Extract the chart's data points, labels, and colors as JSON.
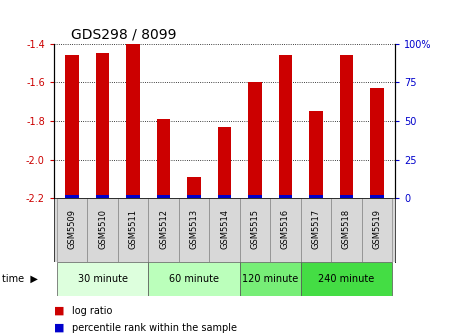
{
  "title": "GDS298 / 8099",
  "samples": [
    "GSM5509",
    "GSM5510",
    "GSM5511",
    "GSM5512",
    "GSM5513",
    "GSM5514",
    "GSM5515",
    "GSM5516",
    "GSM5517",
    "GSM5518",
    "GSM5519"
  ],
  "log_ratios": [
    -1.46,
    -1.45,
    -1.4,
    -1.79,
    -2.09,
    -1.83,
    -1.6,
    -1.46,
    -1.75,
    -1.46,
    -1.63
  ],
  "percentile_ranks": [
    2,
    2,
    2,
    2,
    2,
    2,
    2,
    2,
    2,
    2,
    2
  ],
  "ylim": [
    -2.2,
    -1.4
  ],
  "yticks": [
    -2.2,
    -2.0,
    -1.8,
    -1.6,
    -1.4
  ],
  "right_yticks": [
    0,
    25,
    50,
    75,
    100
  ],
  "right_ylabels": [
    "0",
    "25",
    "50",
    "75",
    "100%"
  ],
  "bar_color": "#cc0000",
  "percentile_color": "#0000cc",
  "grid_color": "#000000",
  "time_groups": [
    {
      "label": "30 minute",
      "start": 0,
      "end": 3,
      "color": "#ddffdd"
    },
    {
      "label": "60 minute",
      "start": 3,
      "end": 6,
      "color": "#bbffbb"
    },
    {
      "label": "120 minute",
      "start": 6,
      "end": 8,
      "color": "#77ee77"
    },
    {
      "label": "240 minute",
      "start": 8,
      "end": 11,
      "color": "#44dd44"
    }
  ],
  "bar_width": 0.45,
  "label_fontsize": 6,
  "ylabel_fontsize": 7,
  "title_fontsize": 10,
  "tick_label_color_left": "#cc0000",
  "tick_label_color_right": "#0000cc",
  "background_color": "#ffffff"
}
